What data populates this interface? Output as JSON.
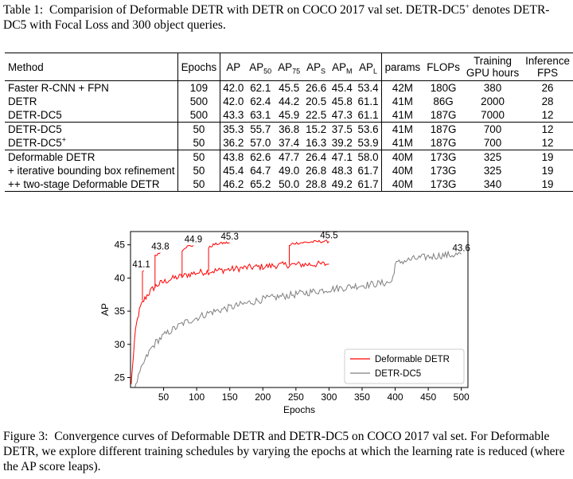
{
  "table_caption": {
    "label": "Table 1:",
    "text": "Comparision of Deformable DETR with DETR on COCO 2017 val set.  DETR-DC5",
    "sup": "+",
    "text2": " denotes DETR-DC5 with Focal Loss and 300 object queries."
  },
  "table": {
    "headers": {
      "method": "Method",
      "epochs": "Epochs",
      "ap": "AP",
      "ap50": "AP",
      "ap50_sub": "50",
      "ap75": "AP",
      "ap75_sub": "75",
      "aps": "AP",
      "aps_sub": "S",
      "apm": "AP",
      "apm_sub": "M",
      "apl": "AP",
      "apl_sub": "L",
      "params": "params",
      "flops": "FLOPs",
      "train_1": "Training",
      "train_2": "GPU hours",
      "inf_1": "Inference",
      "inf_2": "FPS"
    },
    "rows": [
      {
        "method": "Faster R-CNN + FPN",
        "sup": "",
        "epochs": "109",
        "ap": "42.0",
        "ap50": "62.1",
        "ap75": "45.5",
        "aps": "26.6",
        "apm": "45.4",
        "apl": "53.4",
        "params": "42M",
        "flops": "180G",
        "gpu": "380",
        "fps": "26"
      },
      {
        "method": "DETR",
        "sup": "",
        "epochs": "500",
        "ap": "42.0",
        "ap50": "62.4",
        "ap75": "44.2",
        "aps": "20.5",
        "apm": "45.8",
        "apl": "61.1",
        "params": "41M",
        "flops": "86G",
        "gpu": "2000",
        "fps": "28"
      },
      {
        "method": "DETR-DC5",
        "sup": "",
        "epochs": "500",
        "ap": "43.3",
        "ap50": "63.1",
        "ap75": "45.9",
        "aps": "22.5",
        "apm": "47.3",
        "apl": "61.1",
        "params": "41M",
        "flops": "187G",
        "gpu": "7000",
        "fps": "12"
      },
      {
        "method": "DETR-DC5",
        "sup": "",
        "epochs": "50",
        "ap": "35.3",
        "ap50": "55.7",
        "ap75": "36.8",
        "aps": "15.2",
        "apm": "37.5",
        "apl": "53.6",
        "params": "41M",
        "flops": "187G",
        "gpu": "700",
        "fps": "12"
      },
      {
        "method": "DETR-DC5",
        "sup": "+",
        "epochs": "50",
        "ap": "36.2",
        "ap50": "57.0",
        "ap75": "37.4",
        "aps": "16.3",
        "apm": "39.2",
        "apl": "53.9",
        "params": "41M",
        "flops": "187G",
        "gpu": "700",
        "fps": "12"
      },
      {
        "method": "Deformable DETR",
        "sup": "",
        "epochs": "50",
        "ap": "43.8",
        "ap50": "62.6",
        "ap75": "47.7",
        "aps": "26.4",
        "apm": "47.1",
        "apl": "58.0",
        "params": "40M",
        "flops": "173G",
        "gpu": "325",
        "fps": "19"
      },
      {
        "method": "+ iterative bounding box refinement",
        "sup": "",
        "epochs": "50",
        "ap": "45.4",
        "ap50": "64.7",
        "ap75": "49.0",
        "aps": "26.8",
        "apm": "48.3",
        "apl": "61.7",
        "params": "40M",
        "flops": "173G",
        "gpu": "325",
        "fps": "19"
      },
      {
        "method": "++ two-stage Deformable DETR",
        "sup": "",
        "epochs": "50",
        "ap": "46.2",
        "ap50": "65.2",
        "ap75": "50.0",
        "aps": "28.8",
        "apm": "49.2",
        "apl": "61.7",
        "params": "40M",
        "flops": "173G",
        "gpu": "340",
        "fps": "19"
      }
    ]
  },
  "figure_caption": {
    "label": "Figure 3:",
    "text": "Convergence curves of Deformable DETR and DETR-DC5 on COCO 2017 val set. For Deformable DETR, we explore different training schedules by varying the epochs at which the learning rate is reduced (where the AP score leaps)."
  },
  "chart_data": {
    "type": "line",
    "xlabel": "Epochs",
    "ylabel": "AP",
    "xlim": [
      0,
      510
    ],
    "ylim": [
      23.5,
      47
    ],
    "xticks": [
      50,
      100,
      150,
      200,
      250,
      300,
      350,
      400,
      450,
      500
    ],
    "yticks": [
      25,
      30,
      35,
      40,
      45
    ],
    "grid": false,
    "legend_position": "lower-right",
    "series": [
      {
        "name": "Deformable DETR",
        "color": "#ff0000",
        "points": [
          [
            1,
            24
          ],
          [
            3,
            26.5
          ],
          [
            6,
            30.5
          ],
          [
            9,
            33
          ],
          [
            12,
            34.5
          ],
          [
            15,
            35.6
          ],
          [
            20,
            36.6
          ],
          [
            25,
            37.4
          ],
          [
            30,
            38
          ],
          [
            35,
            38.5
          ],
          [
            40,
            38.9
          ],
          [
            45,
            39.2
          ],
          [
            50,
            39.4
          ],
          [
            60,
            39.8
          ],
          [
            70,
            40.1
          ],
          [
            80,
            40.3
          ],
          [
            90,
            40.6
          ],
          [
            100,
            40.8
          ],
          [
            120,
            41
          ],
          [
            140,
            41.2
          ],
          [
            160,
            41.4
          ],
          [
            180,
            41.6
          ],
          [
            200,
            41.7
          ],
          [
            220,
            41.9
          ],
          [
            240,
            42
          ],
          [
            300,
            42.1
          ]
        ],
        "branches": [
          {
            "drop_epoch": 18,
            "points": [
              [
                18,
                41.1
              ],
              [
                20,
                41.1
              ]
            ]
          },
          {
            "drop_epoch": 37,
            "points": [
              [
                37,
                43.3
              ],
              [
                40,
                43.6
              ],
              [
                45,
                43.8
              ]
            ]
          },
          {
            "drop_epoch": 78,
            "points": [
              [
                78,
                44.2
              ],
              [
                82,
                44.6
              ],
              [
                88,
                44.8
              ],
              [
                95,
                44.9
              ]
            ]
          },
          {
            "drop_epoch": 118,
            "points": [
              [
                118,
                44.5
              ],
              [
                125,
                45
              ],
              [
                135,
                45.2
              ],
              [
                145,
                45.3
              ],
              [
                150,
                45.3
              ]
            ]
          },
          {
            "drop_epoch": 240,
            "points": [
              [
                240,
                44.8
              ],
              [
                245,
                45.2
              ],
              [
                255,
                45.3
              ],
              [
                270,
                45.4
              ],
              [
                285,
                45.5
              ],
              [
                300,
                45.5
              ]
            ]
          }
        ],
        "annotations": [
          {
            "x": 20,
            "y": 41.1,
            "label": "41.1"
          },
          {
            "x": 45,
            "y": 43.8,
            "label": "43.8"
          },
          {
            "x": 95,
            "y": 44.9,
            "label": "44.9"
          },
          {
            "x": 150,
            "y": 45.3,
            "label": "45.3"
          },
          {
            "x": 300,
            "y": 45.5,
            "label": "45.5"
          }
        ]
      },
      {
        "name": "DETR-DC5",
        "color": "#7f7f7f",
        "points": [
          [
            1,
            19
          ],
          [
            5,
            22
          ],
          [
            10,
            24.5
          ],
          [
            20,
            27.2
          ],
          [
            30,
            29.2
          ],
          [
            40,
            30.5
          ],
          [
            50,
            31.3
          ],
          [
            60,
            32
          ],
          [
            80,
            33.2
          ],
          [
            100,
            34
          ],
          [
            120,
            34.8
          ],
          [
            140,
            35.3
          ],
          [
            160,
            35.8
          ],
          [
            180,
            36.3
          ],
          [
            200,
            36.8
          ],
          [
            220,
            37.1
          ],
          [
            240,
            37.4
          ],
          [
            260,
            37.7
          ],
          [
            280,
            38
          ],
          [
            300,
            38.3
          ],
          [
            320,
            38.5
          ],
          [
            340,
            38.8
          ],
          [
            360,
            39
          ],
          [
            380,
            39.2
          ],
          [
            395,
            39.4
          ],
          [
            400,
            42
          ],
          [
            410,
            42.5
          ],
          [
            430,
            42.9
          ],
          [
            450,
            43.2
          ],
          [
            470,
            43.4
          ],
          [
            490,
            43.5
          ],
          [
            500,
            43.6
          ]
        ],
        "annotations": [
          {
            "x": 500,
            "y": 43.6,
            "label": "43.6"
          }
        ]
      }
    ]
  }
}
